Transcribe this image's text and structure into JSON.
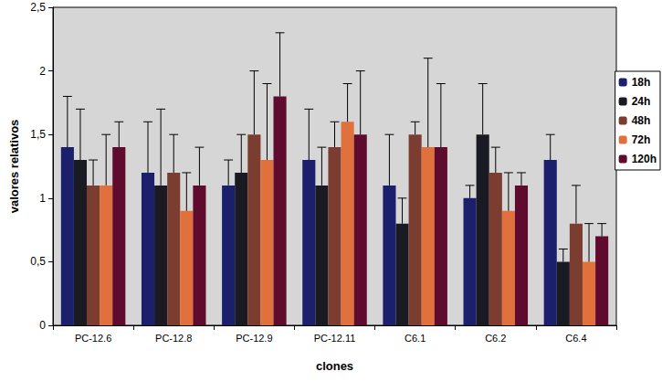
{
  "chart_data": {
    "type": "bar",
    "x_label": "clones",
    "y_label": "valores relativos",
    "categories": [
      "PC-12.6",
      "PC-12.8",
      "PC-12.9",
      "PC-12.11",
      "C6.1",
      "C6.2",
      "C6.4"
    ],
    "series": [
      {
        "name": "18h",
        "color": "#1c1f6b",
        "values": [
          1.4,
          1.2,
          1.1,
          1.3,
          1.1,
          1.0,
          1.3
        ],
        "errors": [
          0.4,
          0.4,
          0.2,
          0.4,
          0.4,
          0.1,
          0.2
        ]
      },
      {
        "name": "24h",
        "color": "#1a1a22",
        "values": [
          1.3,
          1.1,
          1.2,
          1.1,
          0.8,
          1.5,
          0.5
        ],
        "errors": [
          0.4,
          0.6,
          0.3,
          0.3,
          0.2,
          0.4,
          0.1
        ]
      },
      {
        "name": "48h",
        "color": "#7a3d30",
        "values": [
          1.1,
          1.2,
          1.5,
          1.4,
          1.5,
          1.2,
          0.8
        ],
        "errors": [
          0.2,
          0.3,
          0.5,
          0.2,
          0.1,
          0.2,
          0.3
        ]
      },
      {
        "name": "72h",
        "color": "#e0703c",
        "values": [
          1.1,
          0.9,
          1.3,
          1.6,
          1.4,
          0.9,
          0.5
        ],
        "errors": [
          0.4,
          0.3,
          0.6,
          0.3,
          0.7,
          0.3,
          0.3
        ]
      },
      {
        "name": "120h",
        "color": "#5e0b2e",
        "values": [
          1.4,
          1.1,
          1.8,
          1.5,
          1.4,
          1.1,
          0.7
        ],
        "errors": [
          0.2,
          0.3,
          0.5,
          0.5,
          0.5,
          0.1,
          0.1
        ]
      }
    ],
    "ylim": [
      0,
      2.5
    ],
    "yticks": [
      {
        "value": 0,
        "label": "0"
      },
      {
        "value": 0.5,
        "label": "0,5"
      },
      {
        "value": 1,
        "label": "1"
      },
      {
        "value": 1.5,
        "label": "1,5"
      },
      {
        "value": 2,
        "label": "2"
      },
      {
        "value": 2.5,
        "label": "2,5"
      }
    ],
    "grid": false,
    "legend": "right"
  }
}
